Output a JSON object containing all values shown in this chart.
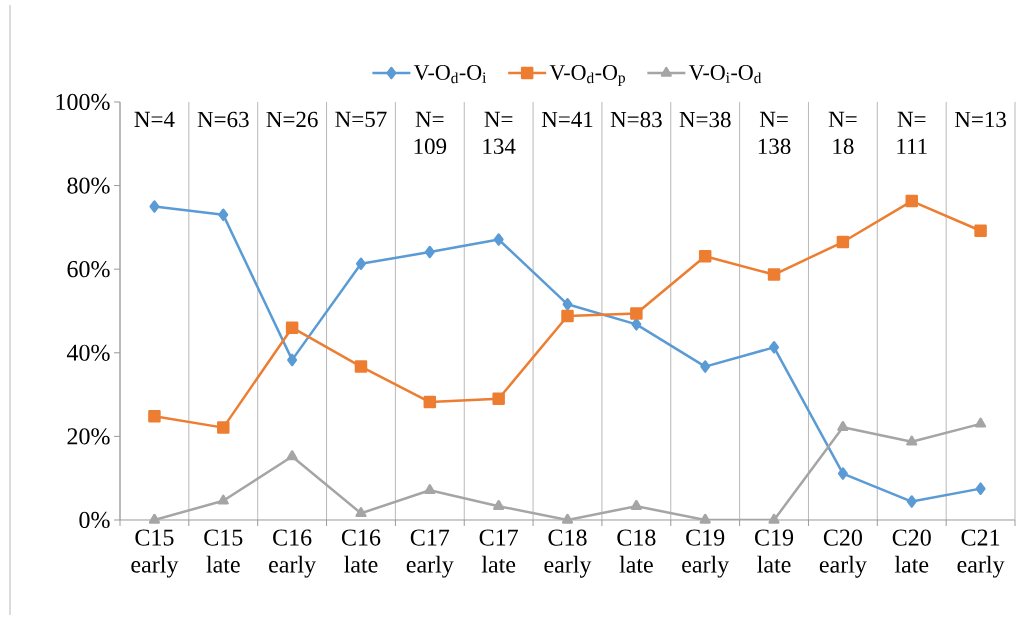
{
  "chart_data": {
    "type": "line",
    "categories": [
      "C15 early",
      "C15 late",
      "C16 early",
      "C16 late",
      "C17 early",
      "C17 late",
      "C18 early",
      "C18 late",
      "C19 early",
      "C19 late",
      "C20 early",
      "C20 late",
      "C21 early"
    ],
    "series": [
      {
        "name": "V-O$_{d}$-O$_{i}$",
        "color": "#5b9bd5",
        "marker": "diamond",
        "values": [
          75,
          73,
          38.3,
          61.3,
          64.1,
          67.1,
          51.6,
          46.8,
          36.7,
          41.3,
          11.1,
          4.4,
          7.5
        ]
      },
      {
        "name": "V-O$_{d}$-O$_{p}$",
        "color": "#ed7d31",
        "marker": "square",
        "values": [
          24.8,
          22.1,
          46,
          36.7,
          28.2,
          29,
          48.8,
          49.4,
          63.1,
          58.7,
          66.5,
          76.3,
          69.2
        ]
      },
      {
        "name": "V-O$_{i}$-O$_{d}$",
        "color": "#a5a5a5",
        "marker": "triangle",
        "values": [
          0,
          4.6,
          15.2,
          1.6,
          7.1,
          3.3,
          0,
          3.3,
          0,
          0,
          22.2,
          18.7,
          23
        ]
      }
    ],
    "annotations": [
      "N=4",
      "N=63",
      "N=26",
      "N=57",
      "N= 109",
      "N= 134",
      "N=41",
      "N=83",
      "N=38",
      "N= 138",
      "N= 18",
      "N= 111",
      "N=13"
    ],
    "ylim": [
      0,
      100
    ],
    "yticks": [
      {
        "value": 0,
        "label": "0%"
      },
      {
        "value": 20,
        "label": "20%"
      },
      {
        "value": 40,
        "label": "40%"
      },
      {
        "value": 60,
        "label": "60%"
      },
      {
        "value": 80,
        "label": "80%"
      },
      {
        "value": 100,
        "label": "100%"
      }
    ],
    "grid": "x",
    "legend": "top",
    "line_style": "solid"
  }
}
